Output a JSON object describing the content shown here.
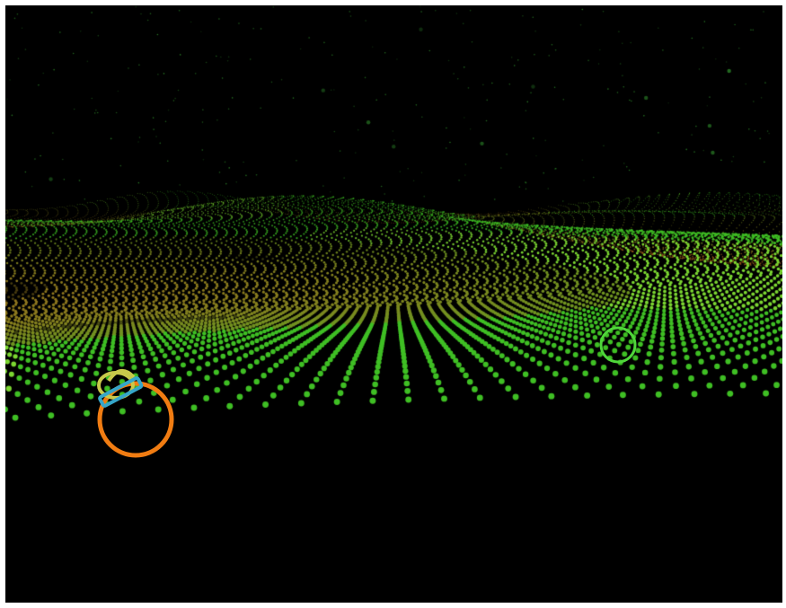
{
  "scene": {
    "sky_color": "#000000",
    "star_color": "#2e8a2a",
    "terrain_primary_color": "#3fbf24",
    "terrain_secondary_color": "#a5621c",
    "terrain_tint_color": "#7bd631"
  },
  "markers": [
    {
      "name": "target-ring-small",
      "color": "#4fd63a",
      "shape": "ring"
    },
    {
      "name": "target-ring-large",
      "color": "#f07c12",
      "shape": "ring"
    },
    {
      "name": "reticle-ring",
      "color": "#c8c94b",
      "shape": "ring"
    },
    {
      "name": "reticle-bar",
      "color": "#35a6c9",
      "shape": "bar"
    }
  ]
}
